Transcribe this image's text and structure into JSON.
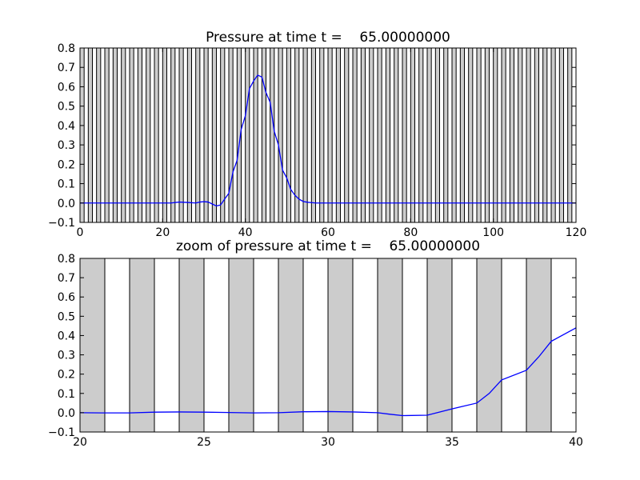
{
  "chart_data": [
    {
      "type": "line",
      "title": "Pressure at time t =    65.00000000",
      "xlabel": "",
      "ylabel": "",
      "xlim": [
        0,
        120
      ],
      "ylim": [
        -0.1,
        0.8
      ],
      "xticks": [
        0,
        20,
        40,
        60,
        80,
        100,
        120
      ],
      "yticks": [
        -0.1,
        0.0,
        0.1,
        0.2,
        0.3,
        0.4,
        0.5,
        0.6,
        0.7,
        0.8
      ],
      "shaded_band_width": 1,
      "shaded_band_spacing": 2,
      "band_fill": "#cccccc",
      "line_color": "#0000ff",
      "series": [
        {
          "x": [
            0,
            5,
            10,
            15,
            20,
            22,
            24,
            26,
            28,
            29,
            30,
            31,
            32,
            33,
            34,
            35,
            36,
            37,
            38,
            39,
            40,
            41,
            42,
            43,
            44,
            45,
            46,
            47,
            48,
            49,
            50,
            51,
            52,
            53,
            54,
            55,
            56,
            57,
            58,
            60,
            120
          ],
          "y": [
            0.0,
            0.0,
            0.0,
            0.0,
            0.0,
            0.0,
            0.005,
            0.003,
            0.0,
            0.005,
            0.007,
            0.005,
            -0.005,
            -0.015,
            -0.01,
            0.02,
            0.05,
            0.16,
            0.22,
            0.38,
            0.45,
            0.59,
            0.63,
            0.66,
            0.65,
            0.57,
            0.52,
            0.37,
            0.3,
            0.17,
            0.13,
            0.07,
            0.04,
            0.02,
            0.008,
            0.004,
            0.002,
            0.0,
            0.0,
            0.0,
            0.0
          ]
        }
      ]
    },
    {
      "type": "line",
      "title": "zoom of pressure at time t =    65.00000000",
      "xlabel": "",
      "ylabel": "",
      "xlim": [
        20,
        40
      ],
      "ylim": [
        -0.1,
        0.8
      ],
      "xticks": [
        20,
        25,
        30,
        35,
        40
      ],
      "yticks": [
        -0.1,
        0.0,
        0.1,
        0.2,
        0.3,
        0.4,
        0.5,
        0.6,
        0.7,
        0.8
      ],
      "shaded_band_width": 1,
      "shaded_band_spacing": 2,
      "band_fill": "#cccccc",
      "line_color": "#0000ff",
      "series": [
        {
          "x": [
            20,
            21,
            22,
            23,
            24,
            25,
            26,
            27,
            28,
            29,
            30,
            31,
            32,
            32.5,
            33,
            34,
            35,
            36,
            36.5,
            37,
            38,
            38.5,
            39,
            40
          ],
          "y": [
            0.0,
            -0.001,
            -0.001,
            0.003,
            0.004,
            0.003,
            0.001,
            -0.001,
            0.0,
            0.005,
            0.006,
            0.004,
            0.0,
            -0.008,
            -0.015,
            -0.013,
            0.02,
            0.05,
            0.1,
            0.17,
            0.22,
            0.29,
            0.37,
            0.44
          ]
        }
      ]
    }
  ]
}
